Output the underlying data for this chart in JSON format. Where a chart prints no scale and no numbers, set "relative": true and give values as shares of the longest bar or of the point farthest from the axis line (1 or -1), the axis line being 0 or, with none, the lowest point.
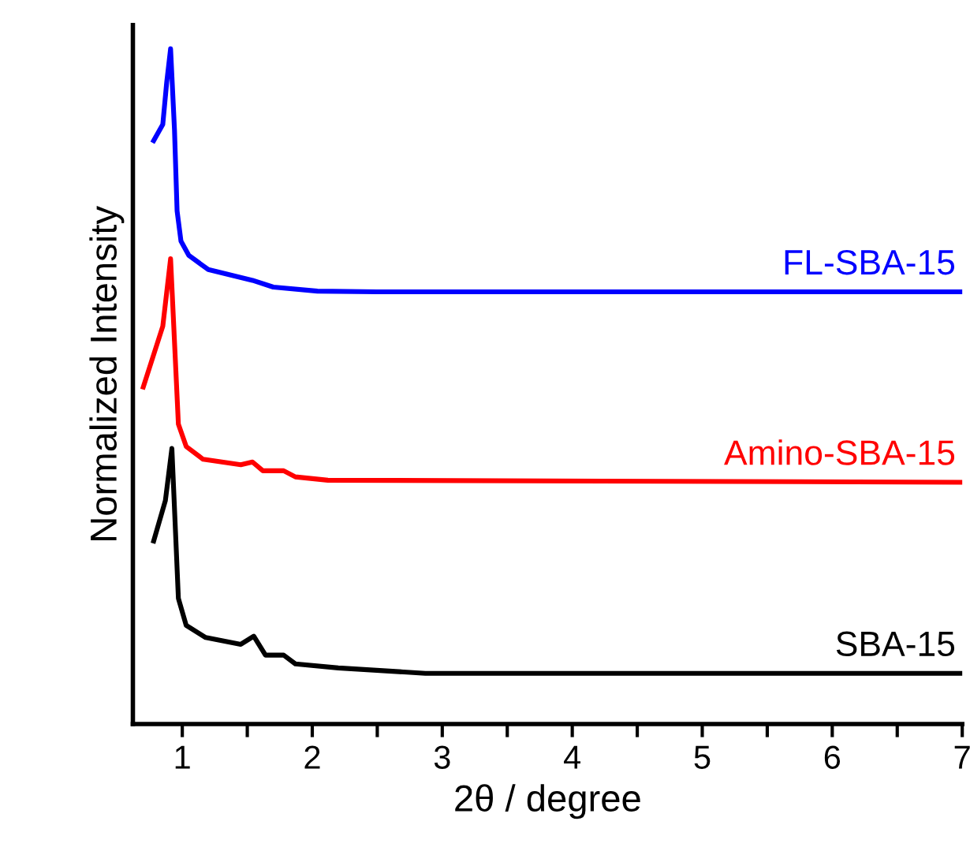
{
  "chart_data": {
    "type": "line",
    "relative": true,
    "xlabel": "2θ / degree",
    "ylabel": "Normalized Intensity",
    "xlim": [
      0.62,
      7
    ],
    "xticks": [
      1,
      {
        "value": 1.5,
        "label": null
      },
      2,
      {
        "value": 2.5,
        "label": null
      },
      3,
      {
        "value": 3.5,
        "label": null
      },
      4,
      {
        "value": 4.5,
        "label": null
      },
      5,
      {
        "value": 5.5,
        "label": null
      },
      6,
      {
        "value": 6.5,
        "label": null
      },
      7
    ],
    "grid": false,
    "legend": false,
    "marker": "none",
    "line_style": "solid",
    "series": [
      {
        "name": "SBA-15",
        "color": "#000000",
        "x": [
          0.78,
          0.87,
          0.92,
          0.97,
          1.03,
          1.18,
          1.45,
          1.55,
          1.64,
          1.78,
          1.87,
          2.2,
          2.87,
          7
        ],
        "values": [
          0.271,
          0.331,
          0.408,
          0.186,
          0.146,
          0.128,
          0.118,
          0.13,
          0.102,
          0.102,
          0.089,
          0.083,
          0.075,
          0.075
        ]
      },
      {
        "name": "Amino-SBA-15",
        "color": "#ff0000",
        "x": [
          0.7,
          0.85,
          0.91,
          0.97,
          1.03,
          1.16,
          1.45,
          1.54,
          1.62,
          1.78,
          1.87,
          2.12,
          7
        ],
        "values": [
          0.499,
          0.589,
          0.689,
          0.444,
          0.411,
          0.392,
          0.384,
          0.388,
          0.375,
          0.375,
          0.366,
          0.361,
          0.358
        ]
      },
      {
        "name": "FL-SBA-15",
        "color": "#0000ff",
        "x": [
          0.78,
          0.85,
          0.88,
          0.91,
          0.94,
          0.96,
          0.99,
          1.05,
          1.2,
          1.54,
          1.7,
          2.04,
          2.5,
          7
        ],
        "values": [
          0.864,
          0.888,
          0.95,
          1.0,
          0.88,
          0.76,
          0.715,
          0.694,
          0.673,
          0.657,
          0.647,
          0.641,
          0.64,
          0.64
        ]
      }
    ]
  }
}
